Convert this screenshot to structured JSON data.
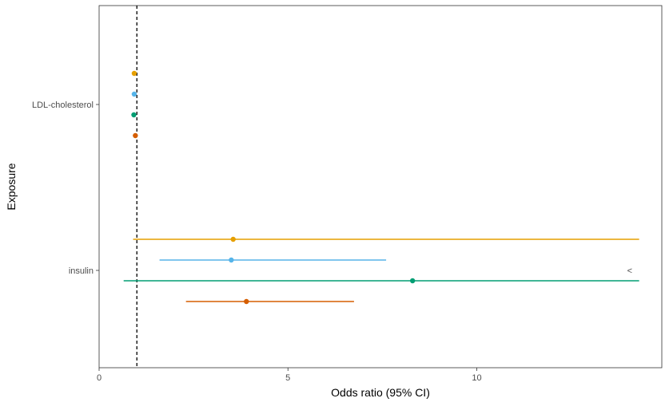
{
  "chart_data": {
    "type": "forest",
    "xlabel": "Odds ratio (95% CI)",
    "ylabel": "Exposure",
    "xlim": [
      0,
      14.9
    ],
    "x_ticks": [
      0,
      5,
      10
    ],
    "reference_line": 1,
    "grid": false,
    "legend": "none",
    "categories": [
      "LDL-cholesterol",
      "insulin"
    ],
    "series": [
      {
        "color": "#E69F00",
        "estimates": [
          0.93,
          3.55
        ],
        "lower": [
          null,
          0.9
        ],
        "upper": [
          null,
          14.3
        ]
      },
      {
        "color": "#56B4E9",
        "estimates": [
          0.93,
          3.5
        ],
        "lower": [
          null,
          1.6
        ],
        "upper": [
          null,
          7.6
        ]
      },
      {
        "color": "#009E73",
        "estimates": [
          0.92,
          8.3
        ],
        "lower": [
          null,
          0.65
        ],
        "upper": [
          null,
          14.3
        ]
      },
      {
        "color": "#D55E00",
        "estimates": [
          0.96,
          3.9
        ],
        "lower": [
          null,
          2.3
        ],
        "upper": [
          null,
          6.75
        ]
      }
    ],
    "annotations": [
      {
        "text": "<",
        "x": 14.05,
        "category": "insulin"
      }
    ]
  }
}
